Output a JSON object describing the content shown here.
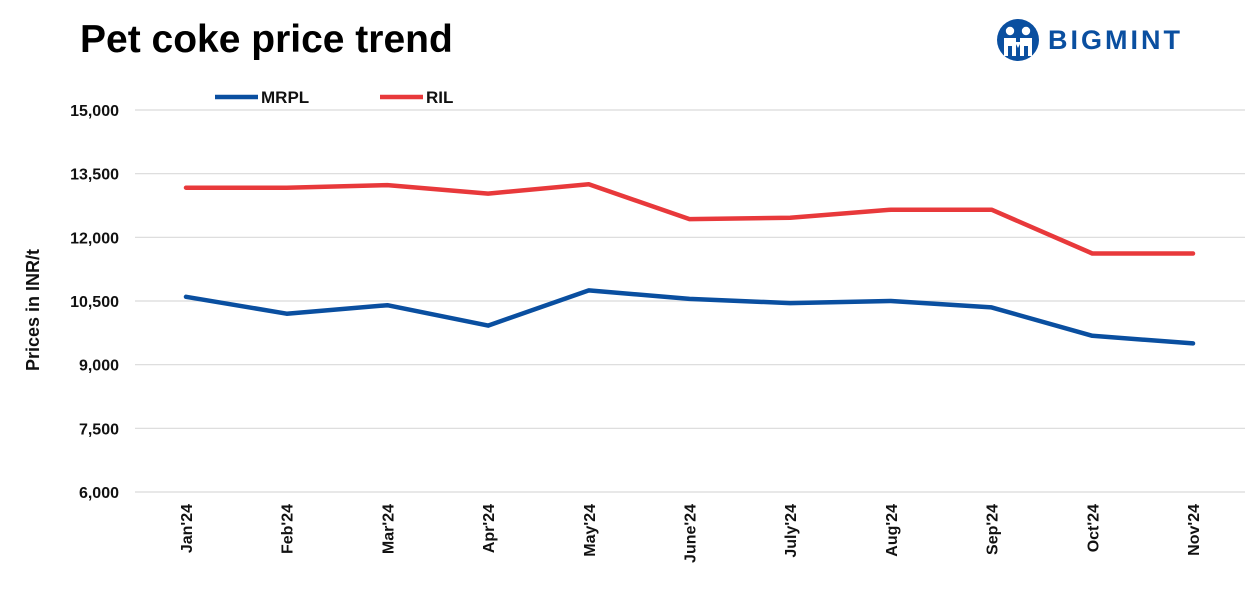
{
  "header": {
    "title": "Pet coke price trend",
    "brand": "BIGMINT"
  },
  "colors": {
    "brand": "#0a4fa0",
    "mrpl": "#0a4fa0",
    "ril": "#e8393b",
    "grid": "#d9d9d9"
  },
  "icons": {
    "logo": "people-circle-logo-icon"
  },
  "chart_data": {
    "type": "line",
    "title": "Pet coke price trend",
    "xlabel": "",
    "ylabel": "Prices in INR/t",
    "ylim": [
      6000,
      15000
    ],
    "yticks": [
      "6,000",
      "7,500",
      "9,000",
      "10,500",
      "12,000",
      "13,500",
      "15,000"
    ],
    "ytick_values": [
      6000,
      7500,
      9000,
      10500,
      12000,
      13500,
      15000
    ],
    "grid": true,
    "legend_position": "top-left",
    "categories": [
      "Jan'24",
      "Feb'24",
      "Mar'24",
      "Apr'24",
      "May'24",
      "June'24",
      "July'24",
      "Aug'24",
      "Sep'24",
      "Oct'24",
      "Nov'24"
    ],
    "series": [
      {
        "name": "MRPL",
        "values": [
          10600,
          10200,
          10400,
          9920,
          10750,
          10550,
          10450,
          10500,
          10350,
          9680,
          9500
        ]
      },
      {
        "name": "RIL",
        "values": [
          13170,
          13170,
          13230,
          13030,
          13250,
          12430,
          12460,
          12650,
          12650,
          11620,
          11620
        ]
      }
    ]
  }
}
